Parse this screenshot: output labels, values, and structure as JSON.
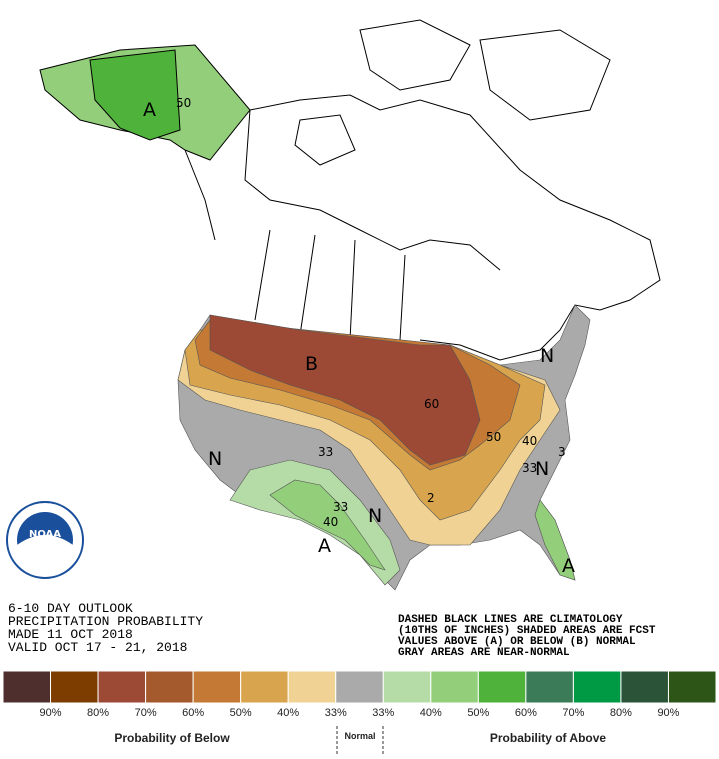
{
  "outlook": {
    "lines": [
      "6-10 DAY OUTLOOK",
      "PRECIPITATION PROBABILITY",
      "MADE  11 OCT 2018",
      "VALID  OCT 17 - 21, 2018"
    ]
  },
  "notes": [
    "DASHED BLACK LINES ARE CLIMATOLOGY",
    "(10THS OF INCHES) SHADED AREAS ARE FCST",
    "VALUES ABOVE (A) OR BELOW (B) NORMAL",
    "GRAY AREAS ARE NEAR-NORMAL"
  ],
  "logo": "NOAA",
  "map_labels": [
    "A",
    "50",
    "B",
    "60",
    "50",
    "40",
    "33",
    "N",
    "33",
    "40",
    "N",
    "A",
    "N",
    "N",
    "33",
    "3",
    "A",
    "2"
  ],
  "legend": {
    "colors": [
      "#4f2e2e",
      "#7d3c00",
      "#9c4a36",
      "#a55a2e",
      "#c47934",
      "#d8a54e",
      "#f0d394",
      "#aaaaaa",
      "#b5dca7",
      "#93cf7a",
      "#4fb23a",
      "#3b7b57",
      "#009a45",
      "#2a5337",
      "#2d5518"
    ],
    "labels": [
      "90%",
      "80%",
      "70%",
      "60%",
      "50%",
      "40%",
      "33%",
      "33%",
      "40%",
      "50%",
      "60%",
      "70%",
      "80%",
      "90%"
    ],
    "below": "Probability of Below",
    "normal": "Normal",
    "above": "Probability of Above"
  }
}
